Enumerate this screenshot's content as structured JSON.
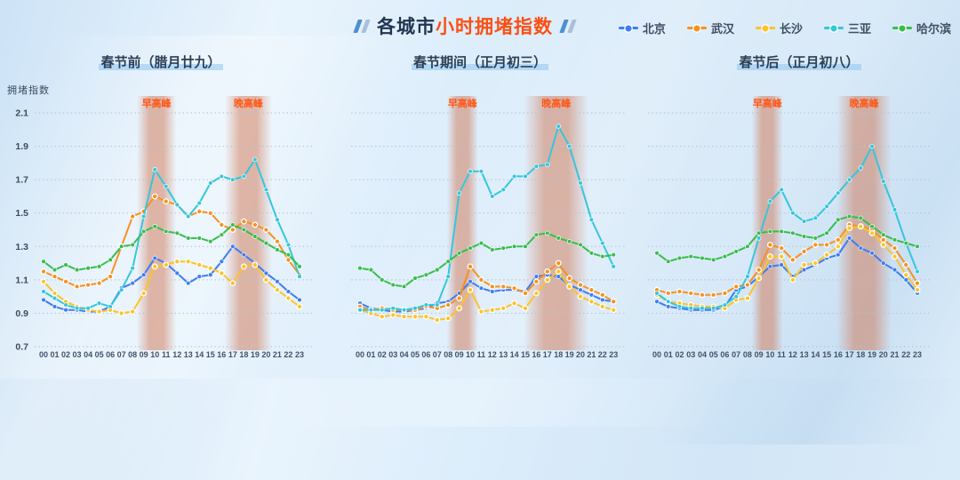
{
  "header": {
    "title_dark": "各城市",
    "title_accent": "小时拥堵指数"
  },
  "legend": [
    {
      "label": "北京",
      "color": "#3e7df0"
    },
    {
      "label": "武汉",
      "color": "#f79120"
    },
    {
      "label": "长沙",
      "color": "#fcc32a"
    },
    {
      "label": "三亚",
      "color": "#35c6dc"
    },
    {
      "label": "哈尔滨",
      "color": "#3abc4f"
    }
  ],
  "chart_data": {
    "type": "line",
    "title": "各城市小时拥堵指数",
    "ylabel": "拥堵指数",
    "xlabel": "",
    "ylim": [
      0.7,
      2.1
    ],
    "yticks": [
      0.7,
      0.9,
      1.1,
      1.3,
      1.5,
      1.7,
      1.9,
      2.1
    ],
    "grid": "dotted-horizontal",
    "legend_position": "top-right",
    "x_labels": [
      "00",
      "01",
      "02",
      "03",
      "04",
      "05",
      "06",
      "07",
      "08",
      "09",
      "10",
      "11",
      "12",
      "13",
      "14",
      "15",
      "16",
      "17",
      "18",
      "19",
      "20",
      "21",
      "22",
      "23"
    ],
    "series_colors": {
      "北京": "#3e7df0",
      "武汉": "#f79120",
      "长沙": "#fcc32a",
      "三亚": "#35c6dc",
      "哈尔滨": "#3abc4f"
    },
    "ring_marker_series": [
      "武汉",
      "长沙"
    ],
    "peak_band_color": "#cf7450",
    "peak_label_color": "#ff5717",
    "panels": [
      {
        "title": "春节前（腊月廿九）",
        "peak_bands": [
          {
            "label": "早高峰",
            "from_hour": 8.7,
            "to_hour": 11.6
          },
          {
            "label": "晚高峰",
            "from_hour": 16.6,
            "to_hour": 20.2
          }
        ],
        "series": [
          {
            "name": "北京",
            "values": [
              0.98,
              0.94,
              0.92,
              0.92,
              0.91,
              0.91,
              0.94,
              1.05,
              1.08,
              1.13,
              1.23,
              1.2,
              1.14,
              1.08,
              1.12,
              1.13,
              1.21,
              1.3,
              1.25,
              1.2,
              1.14,
              1.09,
              1.03,
              0.98
            ]
          },
          {
            "name": "武汉",
            "values": [
              1.15,
              1.12,
              1.09,
              1.06,
              1.07,
              1.08,
              1.12,
              1.3,
              1.48,
              1.51,
              1.6,
              1.57,
              1.55,
              1.48,
              1.51,
              1.5,
              1.43,
              1.4,
              1.45,
              1.43,
              1.4,
              1.33,
              1.22,
              1.13
            ]
          },
          {
            "name": "长沙",
            "values": [
              1.09,
              1.02,
              0.97,
              0.94,
              0.92,
              0.91,
              0.92,
              0.9,
              0.91,
              1.02,
              1.18,
              1.19,
              1.21,
              1.21,
              1.19,
              1.17,
              1.14,
              1.08,
              1.18,
              1.19,
              1.1,
              1.04,
              0.99,
              0.94
            ]
          },
          {
            "name": "三亚",
            "values": [
              1.03,
              0.99,
              0.95,
              0.93,
              0.93,
              0.96,
              0.94,
              1.04,
              1.17,
              1.48,
              1.76,
              1.66,
              1.55,
              1.48,
              1.56,
              1.68,
              1.72,
              1.7,
              1.72,
              1.82,
              1.64,
              1.46,
              1.31,
              1.12
            ]
          },
          {
            "name": "哈尔滨",
            "values": [
              1.21,
              1.16,
              1.19,
              1.16,
              1.17,
              1.18,
              1.22,
              1.3,
              1.31,
              1.39,
              1.42,
              1.39,
              1.38,
              1.35,
              1.35,
              1.33,
              1.37,
              1.43,
              1.4,
              1.36,
              1.32,
              1.28,
              1.25,
              1.18
            ]
          }
        ]
      },
      {
        "title": "春节期间（正月初三）",
        "peak_bands": [
          {
            "label": "早高峰",
            "from_hour": 8.2,
            "to_hour": 10.4
          },
          {
            "label": "晚高峰",
            "from_hour": 15.2,
            "to_hour": 20.4
          }
        ],
        "series": [
          {
            "name": "北京",
            "values": [
              0.96,
              0.93,
              0.92,
              0.91,
              0.91,
              0.92,
              0.93,
              0.96,
              0.97,
              1.02,
              1.09,
              1.05,
              1.03,
              1.04,
              1.04,
              1.03,
              1.12,
              1.13,
              1.12,
              1.07,
              1.04,
              1.01,
              0.98,
              0.97
            ]
          },
          {
            "name": "武汉",
            "values": [
              0.94,
              0.92,
              0.93,
              0.92,
              0.92,
              0.92,
              0.94,
              0.93,
              0.95,
              0.99,
              1.18,
              1.1,
              1.06,
              1.06,
              1.05,
              1.02,
              1.09,
              1.15,
              1.2,
              1.11,
              1.07,
              1.04,
              1.01,
              0.97
            ]
          },
          {
            "name": "长沙",
            "values": [
              0.92,
              0.9,
              0.88,
              0.89,
              0.88,
              0.88,
              0.88,
              0.86,
              0.87,
              0.93,
              1.04,
              0.91,
              0.92,
              0.93,
              0.96,
              0.93,
              1.02,
              1.1,
              1.15,
              1.06,
              1.0,
              0.97,
              0.94,
              0.92
            ]
          },
          {
            "name": "三亚",
            "values": [
              0.92,
              0.92,
              0.92,
              0.93,
              0.92,
              0.93,
              0.95,
              0.95,
              1.12,
              1.62,
              1.75,
              1.75,
              1.6,
              1.64,
              1.72,
              1.72,
              1.78,
              1.79,
              2.02,
              1.9,
              1.68,
              1.46,
              1.32,
              1.18
            ]
          },
          {
            "name": "哈尔滨",
            "values": [
              1.17,
              1.16,
              1.1,
              1.07,
              1.06,
              1.11,
              1.13,
              1.16,
              1.21,
              1.26,
              1.29,
              1.32,
              1.28,
              1.29,
              1.3,
              1.3,
              1.37,
              1.38,
              1.35,
              1.33,
              1.31,
              1.26,
              1.24,
              1.25
            ]
          }
        ]
      },
      {
        "title": "春节后（正月初八）",
        "peak_bands": [
          {
            "label": "早高峰",
            "from_hour": 8.7,
            "to_hour": 10.8
          },
          {
            "label": "晚高峰",
            "from_hour": 16.2,
            "to_hour": 20.4
          }
        ],
        "series": [
          {
            "name": "北京",
            "values": [
              0.97,
              0.94,
              0.93,
              0.92,
              0.92,
              0.92,
              0.94,
              1.04,
              1.06,
              1.12,
              1.18,
              1.19,
              1.12,
              1.16,
              1.19,
              1.23,
              1.25,
              1.35,
              1.29,
              1.26,
              1.2,
              1.16,
              1.1,
              1.02
            ]
          },
          {
            "name": "武汉",
            "values": [
              1.04,
              1.02,
              1.03,
              1.02,
              1.01,
              1.01,
              1.02,
              1.06,
              1.07,
              1.16,
              1.31,
              1.29,
              1.22,
              1.27,
              1.31,
              1.31,
              1.34,
              1.43,
              1.42,
              1.4,
              1.34,
              1.29,
              1.19,
              1.08
            ]
          },
          {
            "name": "长沙",
            "values": [
              1.01,
              0.97,
              0.96,
              0.95,
              0.94,
              0.94,
              0.93,
              0.98,
              0.99,
              1.11,
              1.24,
              1.24,
              1.1,
              1.19,
              1.2,
              1.25,
              1.3,
              1.41,
              1.42,
              1.38,
              1.31,
              1.24,
              1.13,
              1.04
            ]
          },
          {
            "name": "三亚",
            "values": [
              1.02,
              0.97,
              0.94,
              0.93,
              0.93,
              0.93,
              0.95,
              1.0,
              1.12,
              1.35,
              1.57,
              1.64,
              1.5,
              1.45,
              1.47,
              1.54,
              1.62,
              1.7,
              1.77,
              1.9,
              1.69,
              1.52,
              1.32,
              1.15
            ]
          },
          {
            "name": "哈尔滨",
            "values": [
              1.26,
              1.21,
              1.23,
              1.24,
              1.23,
              1.22,
              1.24,
              1.27,
              1.3,
              1.38,
              1.39,
              1.39,
              1.38,
              1.36,
              1.35,
              1.38,
              1.46,
              1.48,
              1.47,
              1.42,
              1.37,
              1.34,
              1.32,
              1.3
            ]
          }
        ]
      }
    ]
  }
}
